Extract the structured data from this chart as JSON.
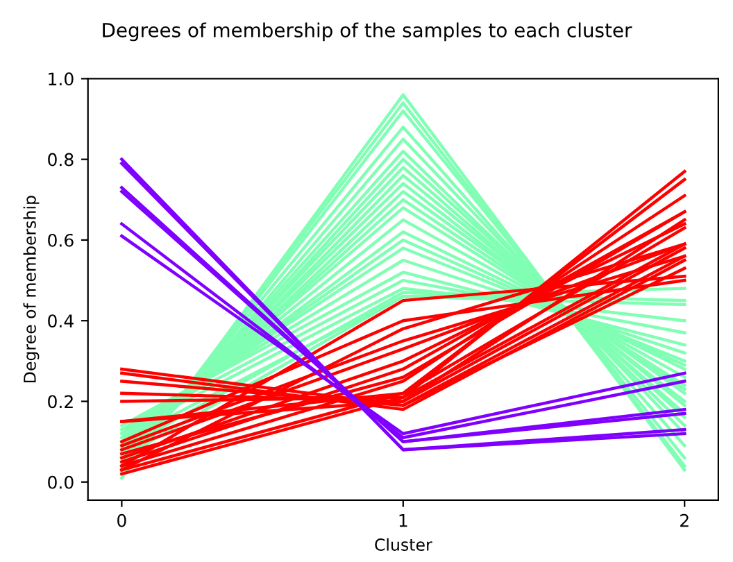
{
  "chart_data": {
    "type": "line",
    "title": "Degrees of membership of the samples to each cluster",
    "xlabel": "Cluster",
    "ylabel": "Degree of membership",
    "x": [
      0,
      1,
      2
    ],
    "xlim": [
      -0.12,
      2.12
    ],
    "xticks": [
      0,
      1,
      2
    ],
    "ylim": [
      -0.045,
      1.0
    ],
    "yticks": [
      {
        "value": 0,
        "label": "0.0"
      },
      {
        "value": 0.2,
        "label": "0.2"
      },
      {
        "value": 0.4,
        "label": "0.4"
      },
      {
        "value": 0.6,
        "label": "0.6"
      },
      {
        "value": 0.8,
        "label": "0.8"
      },
      {
        "value": 1.0,
        "label": "1.0"
      }
    ],
    "grid": false,
    "marker": "none",
    "line_style": "solid",
    "series": [
      {
        "color": "#80ffb4",
        "values": [
          0.01,
          0.96,
          0.03
        ]
      },
      {
        "color": "#80ffb4",
        "values": [
          0.02,
          0.94,
          0.04
        ]
      },
      {
        "color": "#80ffb4",
        "values": [
          0.02,
          0.92,
          0.06
        ]
      },
      {
        "color": "#80ffb4",
        "values": [
          0.03,
          0.88,
          0.09
        ]
      },
      {
        "color": "#80ffb4",
        "values": [
          0.03,
          0.85,
          0.12
        ]
      },
      {
        "color": "#80ffb4",
        "values": [
          0.04,
          0.82,
          0.14
        ]
      },
      {
        "color": "#80ffb4",
        "values": [
          0.04,
          0.8,
          0.16
        ]
      },
      {
        "color": "#80ffb4",
        "values": [
          0.05,
          0.78,
          0.17
        ]
      },
      {
        "color": "#80ffb4",
        "values": [
          0.05,
          0.76,
          0.19
        ]
      },
      {
        "color": "#80ffb4",
        "values": [
          0.06,
          0.74,
          0.2
        ]
      },
      {
        "color": "#80ffb4",
        "values": [
          0.06,
          0.72,
          0.22
        ]
      },
      {
        "color": "#80ffb4",
        "values": [
          0.07,
          0.7,
          0.23
        ]
      },
      {
        "color": "#80ffb4",
        "values": [
          0.08,
          0.68,
          0.24
        ]
      },
      {
        "color": "#80ffb4",
        "values": [
          0.09,
          0.65,
          0.26
        ]
      },
      {
        "color": "#80ffb4",
        "values": [
          0.1,
          0.62,
          0.28
        ]
      },
      {
        "color": "#80ffb4",
        "values": [
          0.11,
          0.6,
          0.29
        ]
      },
      {
        "color": "#80ffb4",
        "values": [
          0.12,
          0.58,
          0.3
        ]
      },
      {
        "color": "#80ffb4",
        "values": [
          0.13,
          0.55,
          0.32
        ]
      },
      {
        "color": "#80ffb4",
        "values": [
          0.14,
          0.52,
          0.34
        ]
      },
      {
        "color": "#80ffb4",
        "values": [
          0.13,
          0.5,
          0.37
        ]
      },
      {
        "color": "#80ffb4",
        "values": [
          0.12,
          0.48,
          0.4
        ]
      },
      {
        "color": "#80ffb4",
        "values": [
          0.1,
          0.46,
          0.44
        ]
      },
      {
        "color": "#80ffb4",
        "values": [
          0.08,
          0.47,
          0.45
        ]
      },
      {
        "color": "#80ffb4",
        "values": [
          0.06,
          0.46,
          0.48
        ]
      },
      {
        "color": "#ff0000",
        "values": [
          0.02,
          0.21,
          0.77
        ]
      },
      {
        "color": "#ff0000",
        "values": [
          0.03,
          0.22,
          0.75
        ]
      },
      {
        "color": "#ff0000",
        "values": [
          0.04,
          0.25,
          0.71
        ]
      },
      {
        "color": "#ff0000",
        "values": [
          0.05,
          0.28,
          0.67
        ]
      },
      {
        "color": "#ff0000",
        "values": [
          0.07,
          0.26,
          0.67
        ]
      },
      {
        "color": "#ff0000",
        "values": [
          0.06,
          0.3,
          0.64
        ]
      },
      {
        "color": "#ff0000",
        "values": [
          0.08,
          0.33,
          0.59
        ]
      },
      {
        "color": "#ff0000",
        "values": [
          0.03,
          0.38,
          0.59
        ]
      },
      {
        "color": "#ff0000",
        "values": [
          0.09,
          0.35,
          0.56
        ]
      },
      {
        "color": "#ff0000",
        "values": [
          0.1,
          0.4,
          0.5
        ]
      },
      {
        "color": "#ff0000",
        "values": [
          0.04,
          0.45,
          0.51
        ]
      },
      {
        "color": "#ff0000",
        "values": [
          0.15,
          0.2,
          0.65
        ]
      },
      {
        "color": "#ff0000",
        "values": [
          0.15,
          0.22,
          0.63
        ]
      },
      {
        "color": "#ff0000",
        "values": [
          0.2,
          0.21,
          0.59
        ]
      },
      {
        "color": "#ff0000",
        "values": [
          0.22,
          0.2,
          0.58
        ]
      },
      {
        "color": "#ff0000",
        "values": [
          0.25,
          0.19,
          0.56
        ]
      },
      {
        "color": "#ff0000",
        "values": [
          0.27,
          0.18,
          0.55
        ]
      },
      {
        "color": "#ff0000",
        "values": [
          0.28,
          0.19,
          0.53
        ]
      },
      {
        "color": "#8000ff",
        "values": [
          0.8,
          0.08,
          0.12
        ]
      },
      {
        "color": "#8000ff",
        "values": [
          0.79,
          0.08,
          0.13
        ]
      },
      {
        "color": "#8000ff",
        "values": [
          0.73,
          0.1,
          0.17
        ]
      },
      {
        "color": "#8000ff",
        "values": [
          0.72,
          0.1,
          0.18
        ]
      },
      {
        "color": "#8000ff",
        "values": [
          0.64,
          0.11,
          0.25
        ]
      },
      {
        "color": "#8000ff",
        "values": [
          0.61,
          0.12,
          0.27
        ]
      }
    ]
  }
}
